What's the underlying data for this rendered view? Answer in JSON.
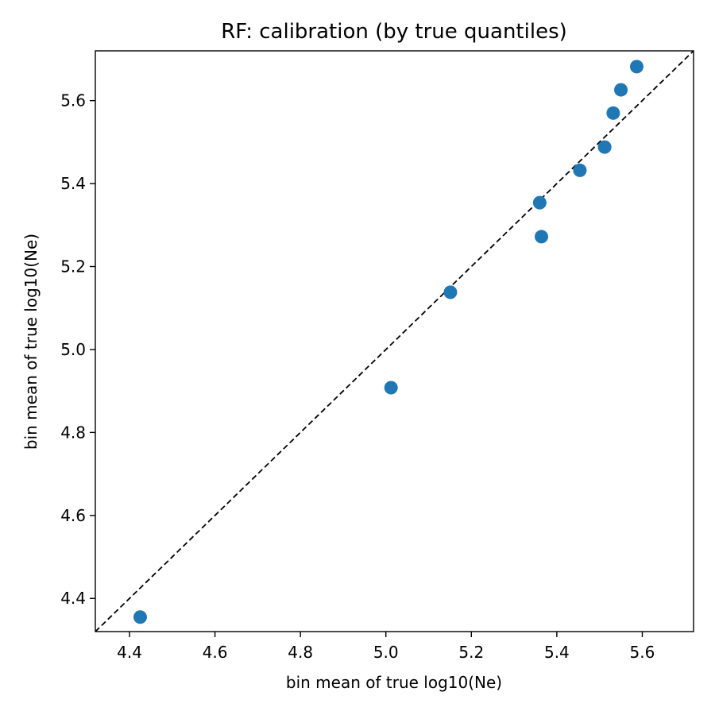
{
  "chart_data": {
    "type": "scatter",
    "title": "RF: calibration (by true quantiles)",
    "xlabel": "bin mean of true log10(Ne)",
    "ylabel": "bin mean of true log10(Ne)",
    "xlim": [
      4.32,
      5.72
    ],
    "ylim": [
      4.32,
      5.72
    ],
    "xticks": [
      4.4,
      4.6,
      4.8,
      5.0,
      5.2,
      5.4,
      5.6
    ],
    "yticks": [
      4.4,
      4.6,
      4.8,
      5.0,
      5.2,
      5.4,
      5.6
    ],
    "xtick_labels": [
      "4.4",
      "4.6",
      "4.8",
      "5.0",
      "5.2",
      "5.4",
      "5.6"
    ],
    "ytick_labels": [
      "4.4",
      "4.6",
      "4.8",
      "5.0",
      "5.2",
      "5.4",
      "5.6"
    ],
    "grid": false,
    "reference_line": "y = x (dashed black)",
    "marker_color": "#1f77b4",
    "points": [
      {
        "x": 4.425,
        "y": 4.355
      },
      {
        "x": 5.012,
        "y": 4.908
      },
      {
        "x": 5.151,
        "y": 5.138
      },
      {
        "x": 5.36,
        "y": 5.354
      },
      {
        "x": 5.364,
        "y": 5.272
      },
      {
        "x": 5.454,
        "y": 5.432
      },
      {
        "x": 5.512,
        "y": 5.488
      },
      {
        "x": 5.532,
        "y": 5.57
      },
      {
        "x": 5.55,
        "y": 5.626
      },
      {
        "x": 5.587,
        "y": 5.682
      }
    ]
  }
}
